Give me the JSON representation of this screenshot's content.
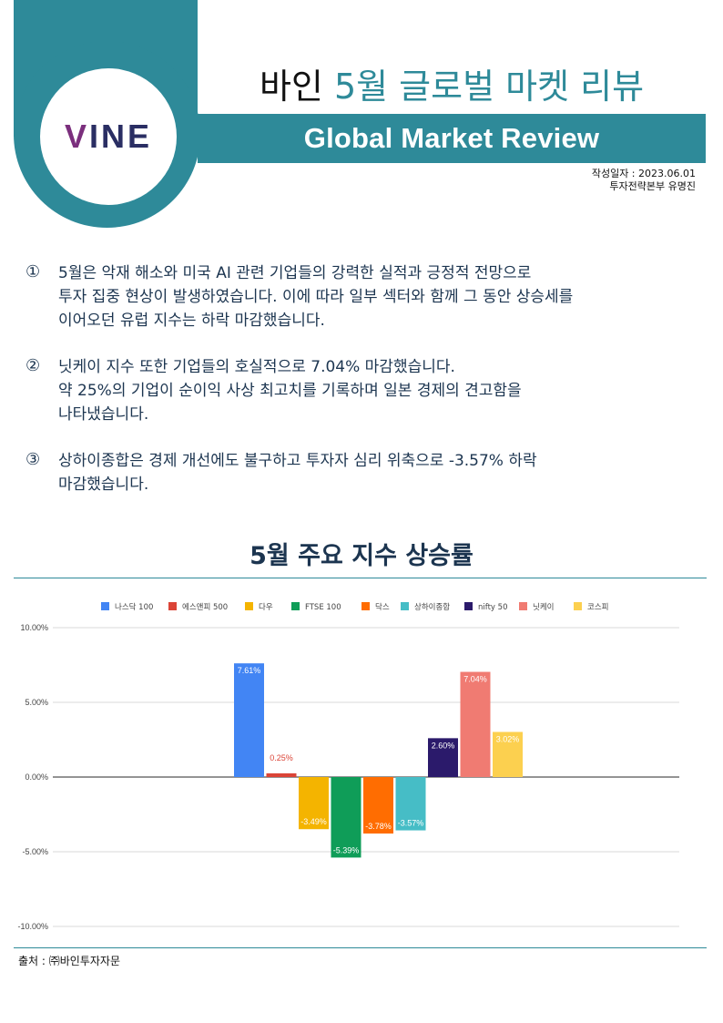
{
  "header": {
    "title_prefix": "바인 ",
    "title_accent": "5월 글로벌 마켓 리뷰",
    "subtitle": "Global Market Review",
    "logo_v": "V",
    "logo_rest": "INE",
    "date_line": "작성일자 : 2023.06.01",
    "author_line": "투자전략본부 유명진",
    "brand_color": "#2e8a99"
  },
  "points": [
    {
      "num": "①",
      "lines": [
        "5월은 악재 해소와 미국 AI 관련 기업들의 강력한 실적과 긍정적 전망으로",
        "투자 집중 현상이 발생하였습니다. 이에 따라 일부 섹터와 함께 그 동안 상승세를",
        "이어오던 유럽 지수는 하락 마감했습니다."
      ]
    },
    {
      "num": "②",
      "lines": [
        "닛케이 지수 또한 기업들의 호실적으로 7.04% 마감했습니다.",
        "약 25%의 기업이 순이익 사상 최고치를 기록하며 일본 경제의 견고함을",
        "나타냈습니다."
      ]
    },
    {
      "num": "③",
      "lines": [
        "상하이종합은 경제 개선에도 불구하고 투자자 심리 위축으로 -3.57% 하락",
        "마감했습니다."
      ]
    }
  ],
  "chart_title": "5월 주요 지수 상승률",
  "source": "출처 : ㈜바인투자자문",
  "chart_data": {
    "type": "bar",
    "title": "5월 주요 지수 상승률",
    "legend_position": "top",
    "grid": true,
    "ylim": [
      -10,
      10
    ],
    "yticks": [
      10,
      5,
      0,
      -5,
      -10
    ],
    "ytick_labels": [
      "10.00%",
      "5.00%",
      "0.00%",
      "-5.00%",
      "-10.00%"
    ],
    "series": [
      {
        "name": "나스닥 100",
        "value": 7.61,
        "label": "7.61%",
        "color": "#4285f4"
      },
      {
        "name": "에스앤피 500",
        "value": 0.25,
        "label": "0.25%",
        "color": "#db4437"
      },
      {
        "name": "다우",
        "value": -3.49,
        "label": "-3.49%",
        "color": "#f4b400"
      },
      {
        "name": "FTSE 100",
        "value": -5.39,
        "label": "-5.39%",
        "color": "#0f9d58"
      },
      {
        "name": "닥스",
        "value": -3.78,
        "label": "-3.78%",
        "color": "#ff6d01"
      },
      {
        "name": "상하이종합",
        "value": -3.57,
        "label": "-3.57%",
        "color": "#46bdc6"
      },
      {
        "name": "nifty 50",
        "value": 2.6,
        "label": "2.60%",
        "color": "#2b1a6b"
      },
      {
        "name": "닛케이",
        "value": 7.04,
        "label": "7.04%",
        "color": "#f07b72"
      },
      {
        "name": "코스피",
        "value": 3.02,
        "label": "3.02%",
        "color": "#fcd04f"
      }
    ]
  }
}
